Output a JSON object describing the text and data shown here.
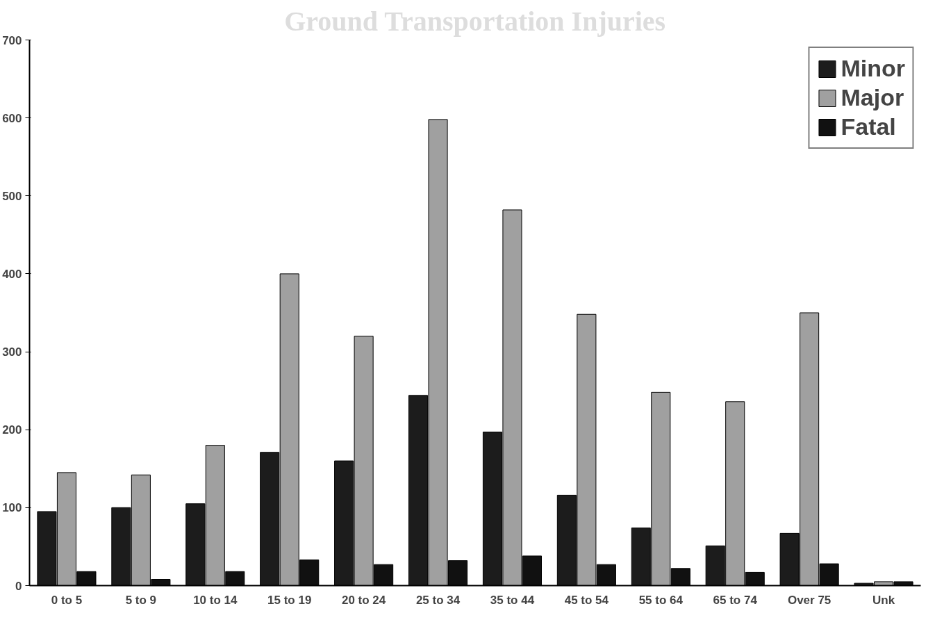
{
  "chart_data": {
    "type": "bar",
    "title": "Ground Transportation Injuries",
    "categories": [
      "0 to 5",
      "5 to 9",
      "10 to 14",
      "15 to 19",
      "20 to 24",
      "25 to 34",
      "35 to 44",
      "45 to 54",
      "55 to 64",
      "65 to 74",
      "Over 75",
      "Unk"
    ],
    "series": [
      {
        "name": "Minor",
        "color": "#1c1c1c",
        "values": [
          95,
          100,
          105,
          171,
          160,
          244,
          197,
          116,
          74,
          51,
          67,
          3
        ]
      },
      {
        "name": "Major",
        "color": "#a0a0a0",
        "values": [
          145,
          142,
          180,
          400,
          320,
          598,
          482,
          348,
          248,
          236,
          350,
          5
        ]
      },
      {
        "name": "Fatal",
        "color": "#111111",
        "values": [
          18,
          8,
          18,
          33,
          27,
          32,
          38,
          27,
          22,
          17,
          28,
          5
        ]
      }
    ],
    "ylim": [
      0,
      700
    ],
    "yticks": [
      0,
      100,
      200,
      300,
      400,
      500,
      600,
      700
    ],
    "grid": false,
    "legend": "top right"
  }
}
